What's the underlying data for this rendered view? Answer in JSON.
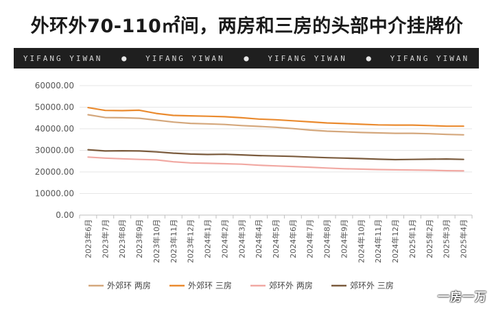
{
  "page": {
    "title": "外环外70-110㎡间，两房和三房的头部中介挂牌价",
    "banner": [
      "YIFANG YIWAN",
      "YIFANG YIWAN",
      "YIFANG YIWAN",
      "YIFANG YIWAN"
    ],
    "brand": "一房一万"
  },
  "chart_data": {
    "type": "line",
    "categories": [
      "2023年6月",
      "2023年7月",
      "2023年8月",
      "2023年9月",
      "2023年10月",
      "2023年11月",
      "2023年12月",
      "2024年1月",
      "2024年2月",
      "2024年3月",
      "2024年4月",
      "2024年5月",
      "2024年6月",
      "2024年7月",
      "2024年8月",
      "2024年9月",
      "2024年10月",
      "2024年11月",
      "2024年12月",
      "2025年1月",
      "2025年2月",
      "2025年3月",
      "2025年4月"
    ],
    "yticks": [
      "0.00",
      "10000.00",
      "20000.00",
      "30000.00",
      "40000.00",
      "50000.00",
      "60000.00"
    ],
    "ylim": [
      0,
      60000
    ],
    "grid": true,
    "legend_position": "bottom",
    "series": [
      {
        "name": "外郊环 两房",
        "color": "#d4a77c",
        "values": [
          46500,
          45200,
          45100,
          44900,
          44000,
          43100,
          42500,
          42300,
          42000,
          41500,
          41100,
          40700,
          40100,
          39400,
          38900,
          38600,
          38300,
          38100,
          37900,
          37900,
          37700,
          37400,
          37200
        ]
      },
      {
        "name": "外郊环 三房",
        "color": "#ea8a2e",
        "values": [
          49800,
          48500,
          48400,
          48600,
          47100,
          46200,
          46000,
          45800,
          45600,
          45100,
          44500,
          44200,
          43700,
          43200,
          42700,
          42400,
          42100,
          41800,
          41700,
          41700,
          41500,
          41200,
          41200
        ]
      },
      {
        "name": "郊环外 两房",
        "color": "#f1a8a2",
        "values": [
          26900,
          26400,
          26100,
          25800,
          25600,
          24700,
          24200,
          24000,
          23800,
          23600,
          23100,
          22800,
          22500,
          22200,
          21800,
          21500,
          21300,
          21100,
          21000,
          20900,
          20800,
          20600,
          20500
        ]
      },
      {
        "name": "郊环外 三房",
        "color": "#7a5a3c",
        "values": [
          30300,
          29700,
          29800,
          29700,
          29300,
          28700,
          28300,
          28100,
          28200,
          27900,
          27600,
          27400,
          27200,
          26900,
          26600,
          26400,
          26200,
          25900,
          25700,
          25800,
          25900,
          26000,
          25800
        ]
      }
    ]
  }
}
